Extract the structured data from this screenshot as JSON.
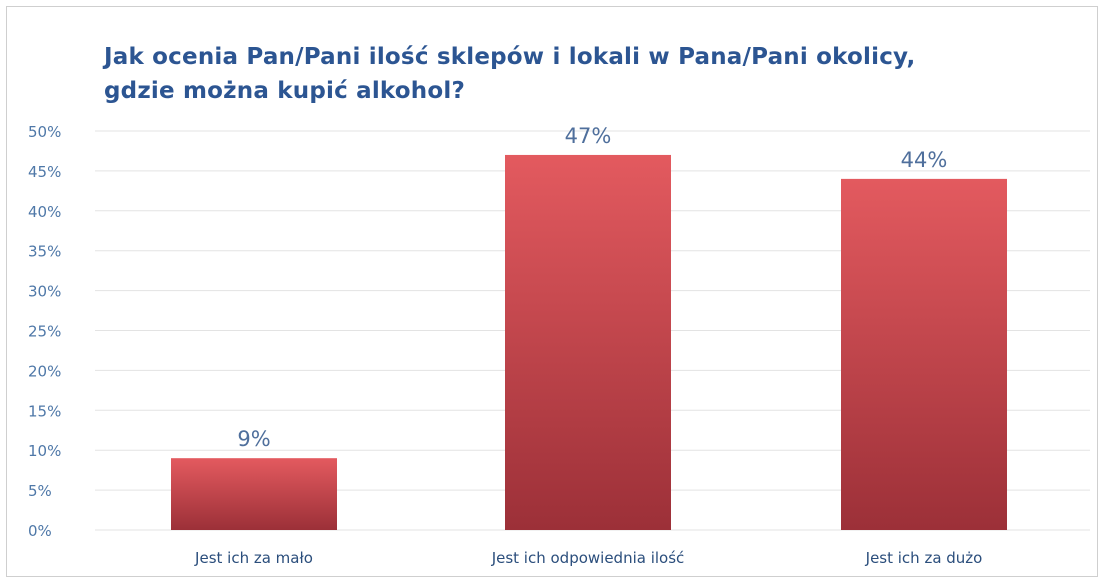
{
  "chart_data": {
    "type": "bar",
    "title_lines": [
      "Jak ocenia Pan/Pani  ilość sklepów i lokali w Pana/Pani  okolicy,",
      "gdzie można kupić alkohol?"
    ],
    "categories": [
      "Jest ich za mało",
      "Jest ich odpowiednia ilość",
      "Jest ich za dużo"
    ],
    "values": [
      9,
      47,
      44
    ],
    "data_labels": [
      "9%",
      "47%",
      "44%"
    ],
    "ylim": [
      0,
      50
    ],
    "yticks": [
      0,
      5,
      10,
      15,
      20,
      25,
      30,
      35,
      40,
      45,
      50
    ],
    "ytick_labels": [
      "0%",
      "5%",
      "10%",
      "15%",
      "20%",
      "25%",
      "30%",
      "35%",
      "40%",
      "45%",
      "50%"
    ],
    "grid": true,
    "legend": "none",
    "colors": {
      "bar_top": "#e35a5f",
      "bar_bottom": "#9c3038",
      "grid": "#e3e3e3"
    }
  }
}
